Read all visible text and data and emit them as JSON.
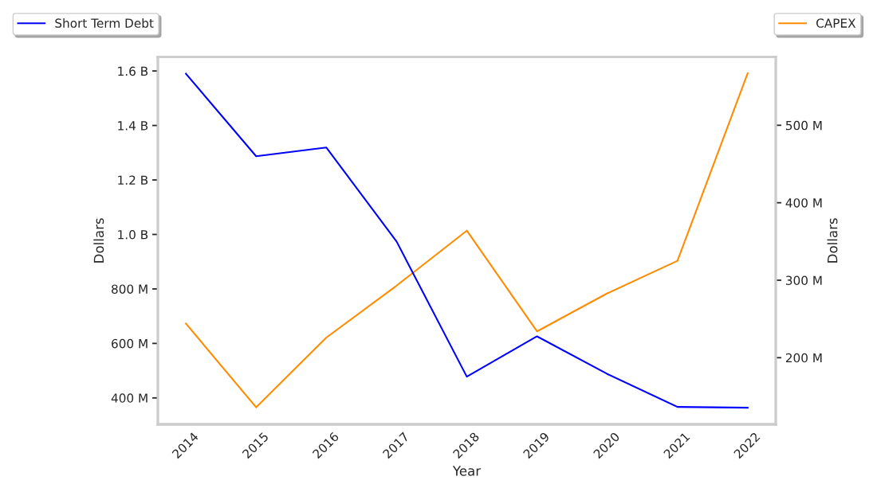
{
  "chart_data": {
    "type": "line",
    "xlabel": "Year",
    "ylabel": "Dollars",
    "y2label": "Dollars",
    "categories": [
      "2014",
      "2015",
      "2016",
      "2017",
      "2018",
      "2019",
      "2020",
      "2021",
      "2022"
    ],
    "series": [
      {
        "name": "Short Term Debt",
        "color": "#0000ff",
        "values": [
          1590000000,
          1287000000,
          1319000000,
          974000000,
          478000000,
          626000000,
          488000000,
          367000000,
          364000000
        ]
      },
      {
        "name": "CAPEX",
        "color": "#ff8c00",
        "axis": "y2",
        "values": [
          244000000,
          136000000,
          226000000,
          293000000,
          364000000,
          234000000,
          283000000,
          325000000,
          567000000
        ]
      }
    ],
    "ylim": [
      303000000,
      1651000000
    ],
    "yticks": [
      {
        "value": 400000000,
        "label": "400 M"
      },
      {
        "value": 600000000,
        "label": "600 M"
      },
      {
        "value": 800000000,
        "label": "800 M"
      },
      {
        "value": 1000000000,
        "label": "1.0 B"
      },
      {
        "value": 1200000000,
        "label": "1.2 B"
      },
      {
        "value": 1400000000,
        "label": "1.4 B"
      },
      {
        "value": 1600000000,
        "label": "1.6 B"
      }
    ],
    "y2lim": [
      114000000,
      588000000
    ],
    "y2ticks": [
      {
        "value": 200000000,
        "label": "200 M"
      },
      {
        "value": 300000000,
        "label": "300 M"
      },
      {
        "value": 400000000,
        "label": "400 M"
      },
      {
        "value": 500000000,
        "label": "500 M"
      }
    ],
    "grid": false,
    "legend": "top",
    "marker": "none",
    "line_style": "solid"
  }
}
